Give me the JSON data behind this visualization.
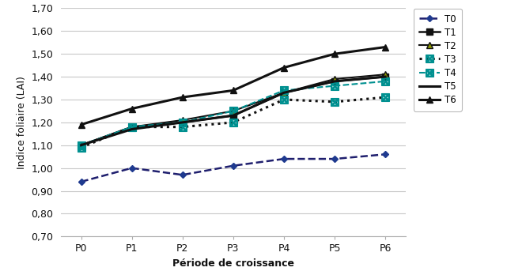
{
  "x_labels": [
    "P0",
    "P1",
    "P2",
    "P3",
    "P4",
    "P5",
    "P6"
  ],
  "series_order": [
    "T0",
    "T1",
    "T2",
    "T3",
    "T4",
    "T5",
    "T6"
  ],
  "series": {
    "T0": [
      0.94,
      1.0,
      0.97,
      1.01,
      1.04,
      1.04,
      1.06
    ],
    "T1": [
      1.1,
      1.18,
      1.2,
      1.23,
      1.33,
      1.38,
      1.4
    ],
    "T2": [
      1.1,
      1.18,
      1.21,
      1.25,
      1.33,
      1.39,
      1.41
    ],
    "T3": [
      1.09,
      1.18,
      1.18,
      1.2,
      1.3,
      1.29,
      1.31
    ],
    "T4": [
      1.1,
      1.18,
      1.2,
      1.25,
      1.34,
      1.36,
      1.38
    ],
    "T5": [
      1.1,
      1.17,
      1.2,
      1.23,
      1.33,
      1.38,
      1.4
    ],
    "T6": [
      1.19,
      1.26,
      1.31,
      1.34,
      1.44,
      1.5,
      1.53
    ]
  },
  "ylabel": "Indice foliaire (LAI)",
  "xlabel": "Période de croissance",
  "ylim": [
    0.7,
    1.7
  ],
  "yticks": [
    0.7,
    0.8,
    0.9,
    1.0,
    1.1,
    1.2,
    1.3,
    1.4,
    1.5,
    1.6,
    1.7
  ],
  "ytick_labels": [
    "0,70",
    "0,80",
    "0,90",
    "1,00",
    "1,10",
    "1,20",
    "1,30",
    "1,40",
    "1,50",
    "1,60",
    "1,70"
  ],
  "grid_color": "#c8c8c8"
}
